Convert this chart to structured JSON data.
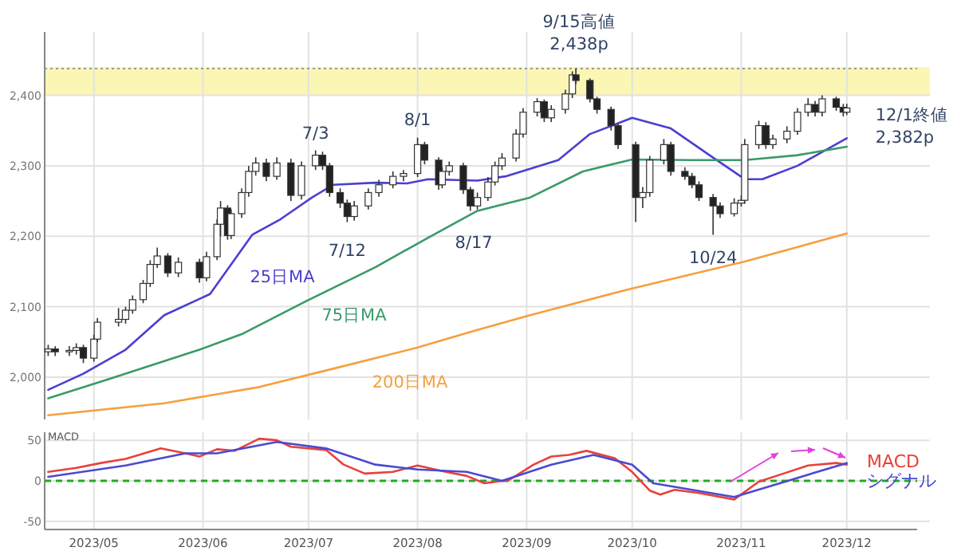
{
  "chart_data": [
    {
      "type": "candlestick",
      "tick_labels": "y",
      "grid": true,
      "xlim": [
        "2023-04-17",
        "2023-12-21"
      ],
      "xticks": [
        {
          "value": "2023-05-01",
          "label": null
        },
        {
          "value": "2023-06-01",
          "label": null
        },
        {
          "value": "2023-07-01",
          "label": null
        },
        {
          "value": "2023-08-01",
          "label": null
        },
        {
          "value": "2023-09-01",
          "label": null
        },
        {
          "value": "2023-10-01",
          "label": null
        },
        {
          "value": "2023-11-01",
          "label": null
        },
        {
          "value": "2023-12-01",
          "label": null
        }
      ],
      "ylim": [
        1940,
        2490
      ],
      "yticks": [
        {
          "value": 2000,
          "label": "2,000"
        },
        {
          "value": 2100,
          "label": "2,100"
        },
        {
          "value": 2200,
          "label": "2,200"
        },
        {
          "value": 2300,
          "label": "2,300"
        },
        {
          "value": 2400,
          "label": "2,400"
        }
      ],
      "bands": [
        {
          "axis": "y",
          "from": 2400,
          "to": 2440,
          "color": "#fbf6b4"
        }
      ],
      "ref_lines": [
        {
          "axis": "y",
          "value": 2438,
          "color": "#999999",
          "line_style": "dotted"
        }
      ],
      "annotations": [
        {
          "text": "7/3",
          "x": "2023-07-03",
          "y": 2322
        },
        {
          "text": "7/12",
          "x": "2023-07-12",
          "y": 2220
        },
        {
          "text": "8/1",
          "x": "2023-08-01",
          "y": 2340
        },
        {
          "text": "8/17",
          "x": "2023-08-17",
          "y": 2240
        },
        {
          "text": "9/15高値\n2,438p",
          "x": "2023-09-15",
          "y": 2438
        },
        {
          "text": "10/24",
          "x": "2023-10-24",
          "y": 2202
        },
        {
          "text": "12/1終値\n2,382p",
          "x": "2023-12-01",
          "y": 2382
        }
      ],
      "x": [
        "2023-04-18",
        "2023-04-20",
        "2023-04-24",
        "2023-04-26",
        "2023-04-28",
        "2023-05-01",
        "2023-05-02",
        "2023-05-08",
        "2023-05-10",
        "2023-05-12",
        "2023-05-15",
        "2023-05-17",
        "2023-05-19",
        "2023-05-22",
        "2023-05-25",
        "2023-05-31",
        "2023-06-02",
        "2023-06-05",
        "2023-06-06",
        "2023-06-08",
        "2023-06-09",
        "2023-06-12",
        "2023-06-14",
        "2023-06-16",
        "2023-06-19",
        "2023-06-22",
        "2023-06-26",
        "2023-06-29",
        "2023-07-03",
        "2023-07-05",
        "2023-07-07",
        "2023-07-10",
        "2023-07-12",
        "2023-07-14",
        "2023-07-18",
        "2023-07-21",
        "2023-07-25",
        "2023-07-28",
        "2023-08-01",
        "2023-08-03",
        "2023-08-07",
        "2023-08-08",
        "2023-08-10",
        "2023-08-14",
        "2023-08-16",
        "2023-08-18",
        "2023-08-21",
        "2023-08-23",
        "2023-08-25",
        "2023-08-29",
        "2023-08-31",
        "2023-09-04",
        "2023-09-06",
        "2023-09-08",
        "2023-09-12",
        "2023-09-14",
        "2023-09-15",
        "2023-09-19",
        "2023-09-21",
        "2023-09-25",
        "2023-09-27",
        "2023-10-02",
        "2023-10-04",
        "2023-10-06",
        "2023-10-10",
        "2023-10-12",
        "2023-10-16",
        "2023-10-18",
        "2023-10-20",
        "2023-10-24",
        "2023-10-26",
        "2023-10-30",
        "2023-11-01",
        "2023-11-02",
        "2023-11-06",
        "2023-11-08",
        "2023-11-10",
        "2023-11-14",
        "2023-11-17",
        "2023-11-20",
        "2023-11-22",
        "2023-11-24",
        "2023-11-28",
        "2023-11-30",
        "2023-12-01"
      ],
      "ohlc": [
        [
          2036,
          2046,
          2030,
          2040
        ],
        [
          2040,
          2044,
          2030,
          2036
        ],
        [
          2036,
          2044,
          2030,
          2038
        ],
        [
          2038,
          2048,
          2032,
          2042
        ],
        [
          2042,
          2046,
          2020,
          2027
        ],
        [
          2027,
          2060,
          2022,
          2054
        ],
        [
          2054,
          2084,
          2050,
          2078
        ],
        [
          2078,
          2098,
          2072,
          2082
        ],
        [
          2082,
          2100,
          2076,
          2095
        ],
        [
          2095,
          2116,
          2090,
          2110
        ],
        [
          2110,
          2138,
          2105,
          2133
        ],
        [
          2133,
          2166,
          2128,
          2160
        ],
        [
          2160,
          2184,
          2155,
          2172
        ],
        [
          2172,
          2176,
          2142,
          2148
        ],
        [
          2148,
          2170,
          2142,
          2163
        ],
        [
          2163,
          2168,
          2134,
          2141
        ],
        [
          2141,
          2178,
          2136,
          2171
        ],
        [
          2171,
          2224,
          2166,
          2217
        ],
        [
          2217,
          2250,
          2200,
          2240
        ],
        [
          2240,
          2244,
          2195,
          2201
        ],
        [
          2201,
          2238,
          2196,
          2232
        ],
        [
          2232,
          2268,
          2226,
          2262
        ],
        [
          2262,
          2300,
          2256,
          2292
        ],
        [
          2292,
          2312,
          2286,
          2304
        ],
        [
          2304,
          2310,
          2278,
          2285
        ],
        [
          2285,
          2312,
          2280,
          2304
        ],
        [
          2304,
          2310,
          2250,
          2258
        ],
        [
          2258,
          2306,
          2252,
          2300
        ],
        [
          2300,
          2322,
          2294,
          2315
        ],
        [
          2315,
          2320,
          2294,
          2300
        ],
        [
          2300,
          2304,
          2256,
          2262
        ],
        [
          2262,
          2268,
          2240,
          2247
        ],
        [
          2247,
          2252,
          2220,
          2228
        ],
        [
          2228,
          2250,
          2222,
          2243
        ],
        [
          2243,
          2268,
          2238,
          2262
        ],
        [
          2262,
          2280,
          2256,
          2273
        ],
        [
          2273,
          2292,
          2268,
          2285
        ],
        [
          2285,
          2294,
          2278,
          2289
        ],
        [
          2289,
          2340,
          2284,
          2330
        ],
        [
          2330,
          2334,
          2302,
          2308
        ],
        [
          2308,
          2312,
          2266,
          2273
        ],
        [
          2273,
          2298,
          2268,
          2292
        ],
        [
          2292,
          2306,
          2286,
          2300
        ],
        [
          2300,
          2304,
          2260,
          2266
        ],
        [
          2266,
          2270,
          2236,
          2243
        ],
        [
          2243,
          2262,
          2238,
          2255
        ],
        [
          2255,
          2284,
          2250,
          2277
        ],
        [
          2277,
          2306,
          2272,
          2300
        ],
        [
          2300,
          2318,
          2294,
          2311
        ],
        [
          2311,
          2352,
          2306,
          2345
        ],
        [
          2345,
          2382,
          2340,
          2376
        ],
        [
          2376,
          2396,
          2370,
          2391
        ],
        [
          2391,
          2394,
          2362,
          2368
        ],
        [
          2368,
          2386,
          2362,
          2380
        ],
        [
          2380,
          2408,
          2374,
          2402
        ],
        [
          2402,
          2434,
          2396,
          2429
        ],
        [
          2429,
          2438,
          2416,
          2421
        ],
        [
          2421,
          2424,
          2390,
          2395
        ],
        [
          2395,
          2398,
          2374,
          2380
        ],
        [
          2380,
          2384,
          2350,
          2357
        ],
        [
          2357,
          2360,
          2324,
          2330
        ],
        [
          2330,
          2334,
          2220,
          2255
        ],
        [
          2255,
          2270,
          2240,
          2262
        ],
        [
          2262,
          2314,
          2256,
          2308
        ],
        [
          2308,
          2338,
          2302,
          2330
        ],
        [
          2330,
          2334,
          2286,
          2292
        ],
        [
          2292,
          2298,
          2280,
          2285
        ],
        [
          2285,
          2290,
          2268,
          2273
        ],
        [
          2273,
          2278,
          2250,
          2255
        ],
        [
          2255,
          2260,
          2202,
          2243
        ],
        [
          2243,
          2248,
          2226,
          2232
        ],
        [
          2232,
          2254,
          2228,
          2247
        ],
        [
          2247,
          2258,
          2242,
          2251
        ],
        [
          2251,
          2338,
          2246,
          2330
        ],
        [
          2330,
          2364,
          2324,
          2357
        ],
        [
          2357,
          2362,
          2324,
          2330
        ],
        [
          2330,
          2344,
          2324,
          2338
        ],
        [
          2338,
          2356,
          2332,
          2349
        ],
        [
          2349,
          2382,
          2344,
          2376
        ],
        [
          2376,
          2396,
          2370,
          2387
        ],
        [
          2387,
          2392,
          2370,
          2376
        ],
        [
          2376,
          2400,
          2370,
          2395
        ],
        [
          2395,
          2398,
          2378,
          2383
        ],
        [
          2383,
          2388,
          2370,
          2376
        ],
        [
          2376,
          2388,
          2372,
          2382
        ]
      ],
      "series": [
        {
          "type": "line",
          "name": "25日MA",
          "color": "#4b3fd0",
          "x": [
            "2023-04-18",
            "2023-04-28",
            "2023-05-10",
            "2023-05-21",
            "2023-06-03",
            "2023-06-15",
            "2023-06-23",
            "2023-07-02",
            "2023-07-08",
            "2023-07-20",
            "2023-07-29",
            "2023-08-04",
            "2023-08-18",
            "2023-08-26",
            "2023-09-10",
            "2023-09-19",
            "2023-10-01",
            "2023-10-12",
            "2023-10-23",
            "2023-11-02",
            "2023-11-07",
            "2023-11-17",
            "2023-12-01"
          ],
          "values": [
            1982,
            2005,
            2039,
            2088,
            2118,
            2202,
            2224,
            2255,
            2273,
            2276,
            2275,
            2281,
            2279,
            2285,
            2308,
            2345,
            2368,
            2353,
            2315,
            2281,
            2281,
            2300,
            2339
          ]
        },
        {
          "type": "line",
          "name": "75日MA",
          "color": "#3a9a6a",
          "x": [
            "2023-04-18",
            "2023-05-05",
            "2023-05-31",
            "2023-06-12",
            "2023-06-30",
            "2023-07-20",
            "2023-08-04",
            "2023-08-18",
            "2023-09-02",
            "2023-09-17",
            "2023-10-01",
            "2023-10-18",
            "2023-11-02",
            "2023-11-17",
            "2023-12-01"
          ],
          "values": [
            1970,
            1997,
            2039,
            2061,
            2107,
            2156,
            2198,
            2236,
            2255,
            2292,
            2309,
            2308,
            2308,
            2315,
            2327
          ]
        },
        {
          "type": "line",
          "name": "200日MA",
          "color": "#f5a040",
          "x": [
            "2023-04-18",
            "2023-05-21",
            "2023-06-17",
            "2023-07-08",
            "2023-08-01",
            "2023-08-18",
            "2023-09-02",
            "2023-10-01",
            "2023-11-02",
            "2023-12-01"
          ],
          "values": [
            1946,
            1963,
            1986,
            2012,
            2042,
            2067,
            2088,
            2126,
            2164,
            2204
          ]
        }
      ]
    },
    {
      "type": "line",
      "title": "MACD",
      "grid": true,
      "xlim": [
        "2023-04-17",
        "2023-12-21"
      ],
      "xticks": [
        {
          "value": "2023-05-01",
          "label": "2023/05"
        },
        {
          "value": "2023-06-01",
          "label": "2023/06"
        },
        {
          "value": "2023-07-01",
          "label": "2023/07"
        },
        {
          "value": "2023-08-01",
          "label": "2023/08"
        },
        {
          "value": "2023-09-01",
          "label": "2023/09"
        },
        {
          "value": "2023-10-01",
          "label": "2023/10"
        },
        {
          "value": "2023-11-01",
          "label": "2023/11"
        },
        {
          "value": "2023-12-01",
          "label": "2023/12"
        }
      ],
      "ylim": [
        -60,
        60
      ],
      "yticks": [
        -50,
        0,
        50
      ],
      "ref_lines": [
        {
          "axis": "y",
          "value": 0,
          "color": "#22aa22",
          "line_style": "dashed"
        }
      ],
      "series": [
        {
          "name": "MACD",
          "color": "#e8413a",
          "x": [
            "2023-04-18",
            "2023-04-26",
            "2023-05-03",
            "2023-05-10",
            "2023-05-20",
            "2023-05-27",
            "2023-05-31",
            "2023-06-05",
            "2023-06-10",
            "2023-06-17",
            "2023-06-22",
            "2023-06-26",
            "2023-07-06",
            "2023-07-11",
            "2023-07-17",
            "2023-07-25",
            "2023-08-01",
            "2023-08-08",
            "2023-08-15",
            "2023-08-20",
            "2023-08-27",
            "2023-09-03",
            "2023-09-08",
            "2023-09-13",
            "2023-09-18",
            "2023-09-26",
            "2023-10-01",
            "2023-10-06",
            "2023-10-09",
            "2023-10-13",
            "2023-10-20",
            "2023-10-30",
            "2023-11-06",
            "2023-11-13",
            "2023-11-20",
            "2023-11-28",
            "2023-12-01"
          ],
          "values": [
            11,
            16,
            22,
            27,
            40,
            34,
            30,
            39,
            37,
            52,
            50,
            42,
            38,
            20,
            9,
            11,
            19,
            12,
            6,
            -3,
            1,
            20,
            30,
            32,
            37,
            28,
            11,
            -12,
            -17,
            -11,
            -15,
            -23,
            -1,
            9,
            19,
            22,
            20
          ]
        },
        {
          "name": "シグナル",
          "color": "#4a4ad0",
          "x": [
            "2023-04-18",
            "2023-05-10",
            "2023-05-27",
            "2023-06-05",
            "2023-06-22",
            "2023-07-06",
            "2023-07-20",
            "2023-08-01",
            "2023-08-15",
            "2023-08-25",
            "2023-09-08",
            "2023-09-20",
            "2023-10-01",
            "2023-10-07",
            "2023-10-30",
            "2023-11-15",
            "2023-12-01"
          ],
          "values": [
            5,
            19,
            34,
            34,
            48,
            40,
            20,
            14,
            11,
            0,
            20,
            32,
            20,
            -3,
            -20,
            1,
            22
          ]
        }
      ]
    }
  ]
}
